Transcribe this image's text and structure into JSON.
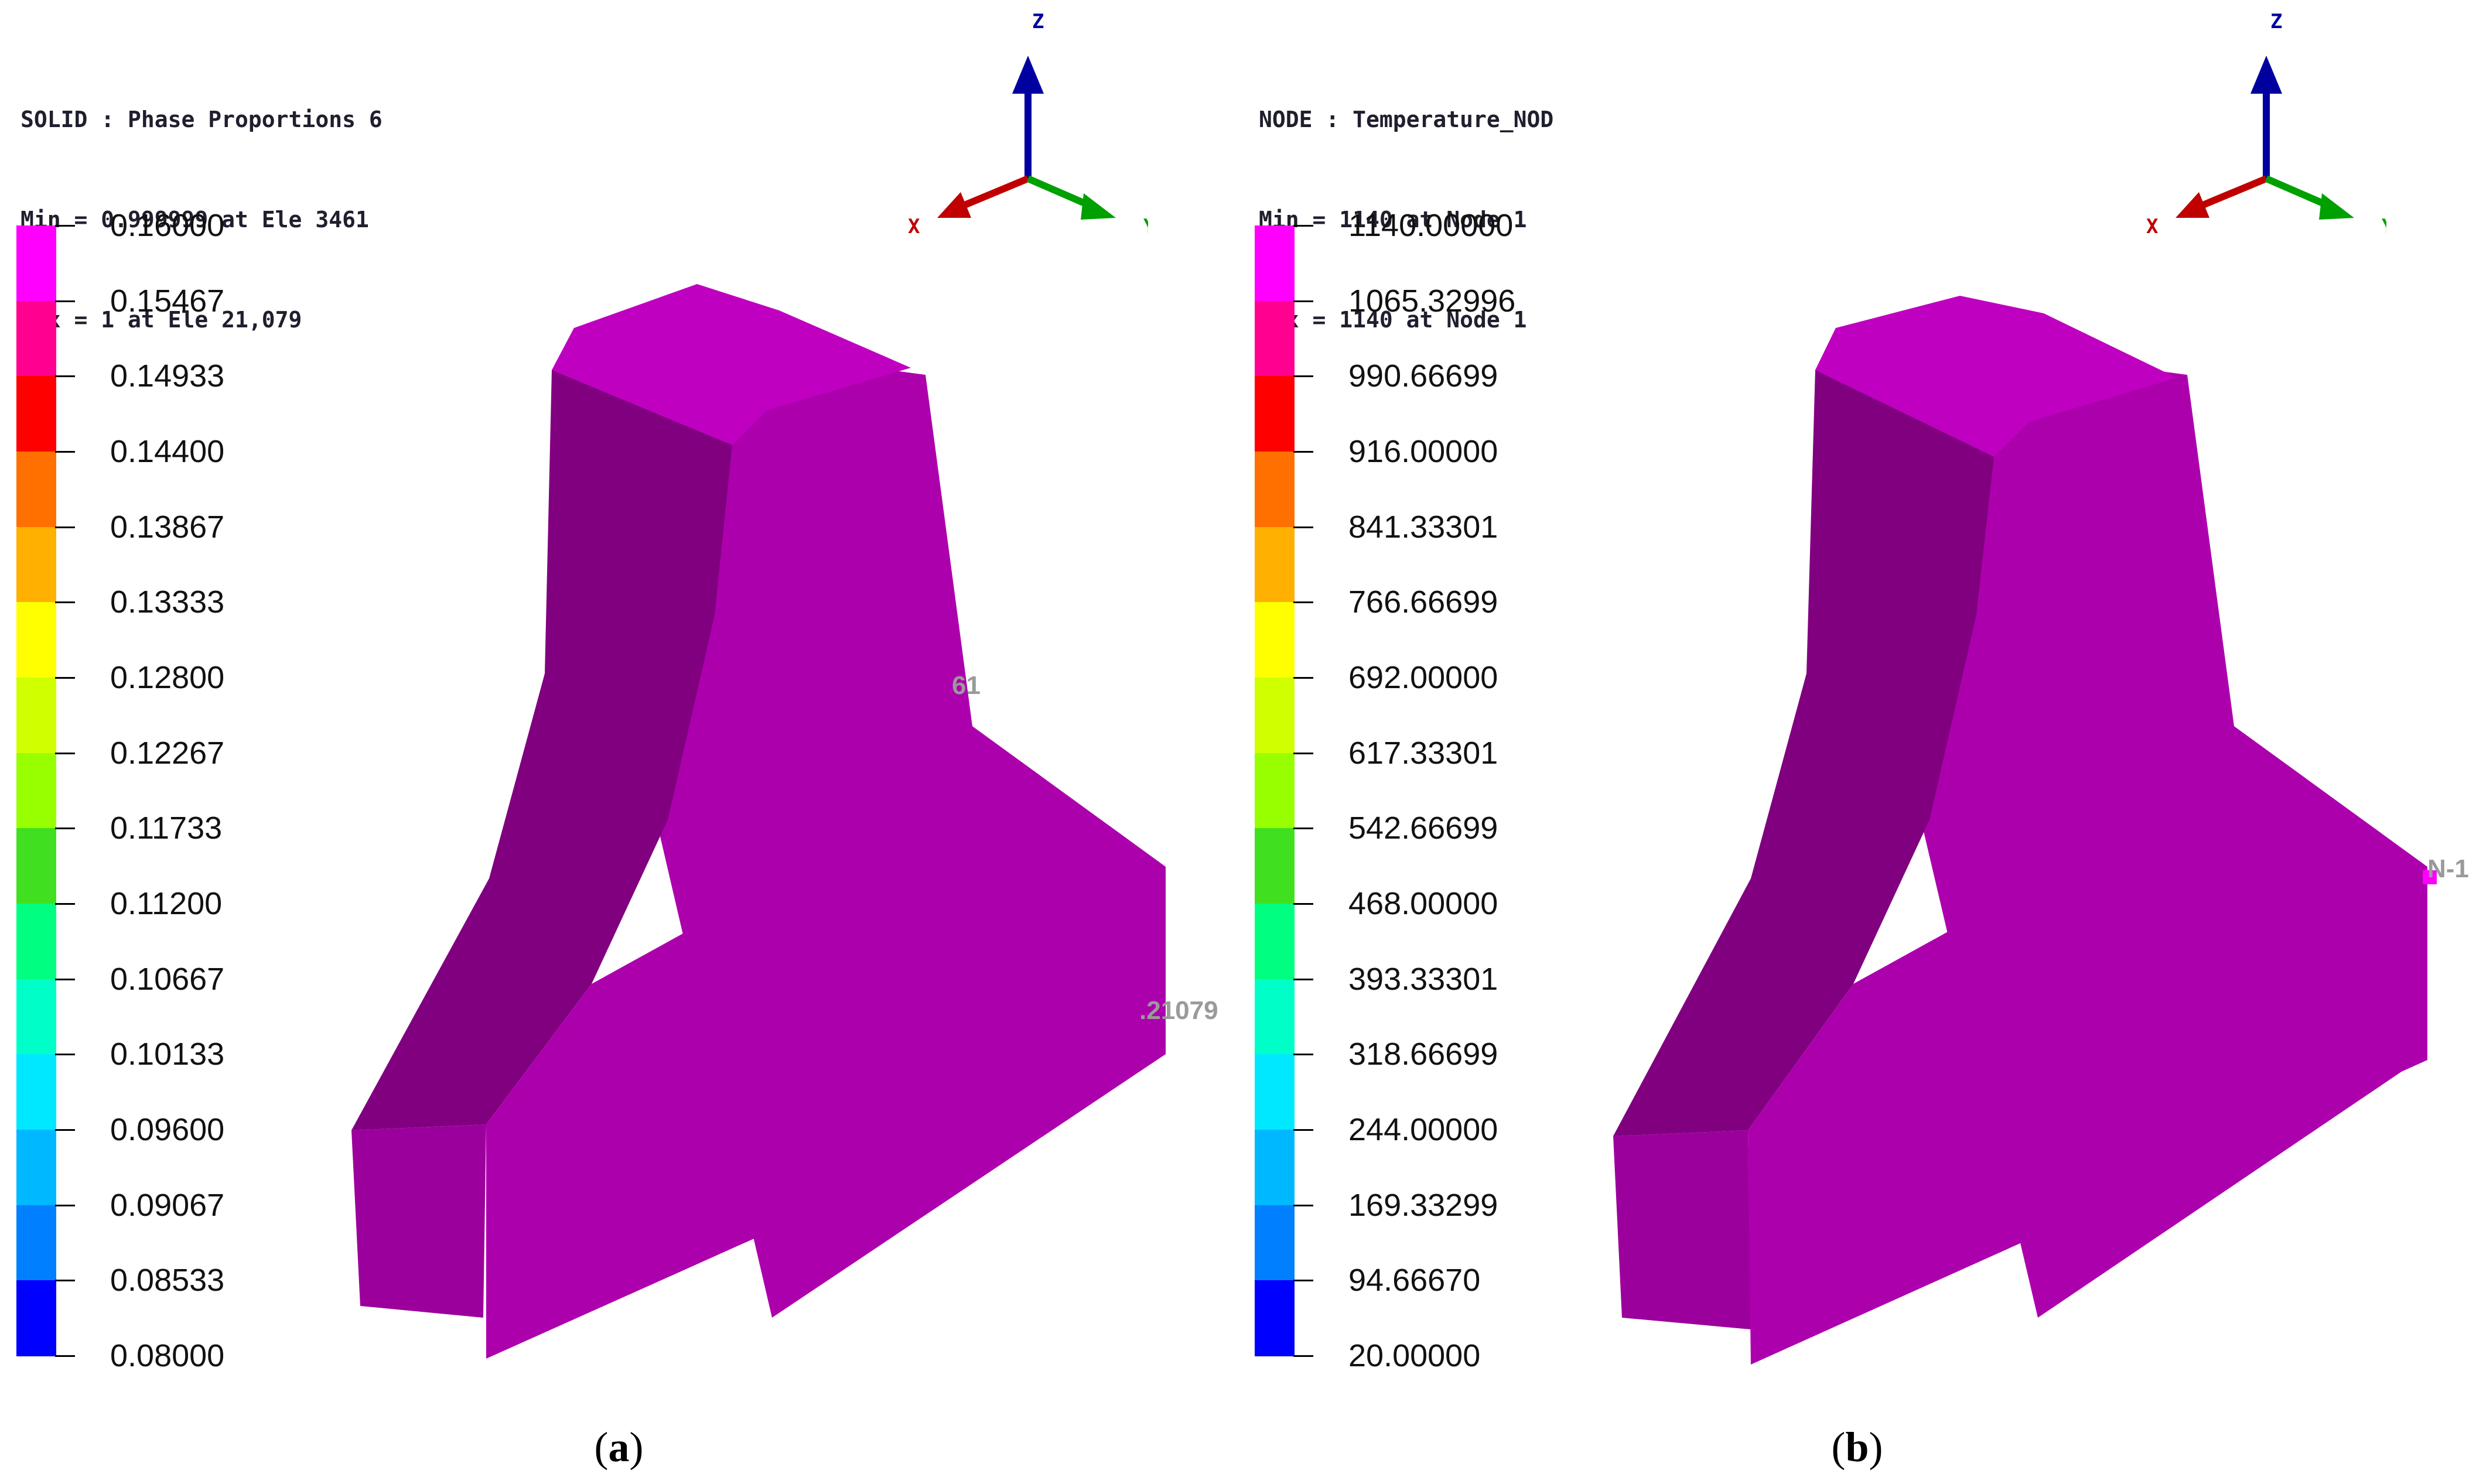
{
  "panels": [
    {
      "header": {
        "line1": "SOLID : Phase Proportions 6",
        "line2": "Min = 0.999999 at Ele 3461",
        "line3": "Max = 1 at Ele 21,079"
      },
      "legend": [
        "0.16000",
        "0.15467",
        "0.14933",
        "0.14400",
        "0.13867",
        "0.13333",
        "0.12800",
        "0.12267",
        "0.11733",
        "0.11200",
        "0.10667",
        "0.10133",
        "0.09600",
        "0.09067",
        "0.08533",
        "0.08000"
      ],
      "axes": {
        "z": "Z",
        "x": "X",
        "y": "Y"
      },
      "annotations": {
        "ann1": "61",
        "ann2": ".21079"
      },
      "caption": {
        "open": "(",
        "letter": "a",
        "close": ")"
      }
    },
    {
      "header": {
        "line1": "NODE : Temperature_NOD",
        "line2": "Min = 1140 at Node 1",
        "line3": "Max = 1140 at Node 1"
      },
      "legend": [
        "1140.00000",
        "1065.32996",
        "990.66699",
        "916.00000",
        "841.33301",
        "766.66699",
        "692.00000",
        "617.33301",
        "542.66699",
        "468.00000",
        "393.33301",
        "318.66699",
        "244.00000",
        "169.33299",
        "94.66670",
        "20.00000"
      ],
      "axes": {
        "z": "Z",
        "x": "X",
        "y": "Y"
      },
      "annotations": {
        "ann1": "N-1"
      },
      "caption": {
        "open": "(",
        "letter": "b",
        "close": ")"
      }
    }
  ],
  "colors": {
    "scale": [
      "#ff00ff",
      "#ff0090",
      "#ff0000",
      "#ff7000",
      "#ffb000",
      "#ffff00",
      "#d0ff00",
      "#98ff00",
      "#40e020",
      "#00ff80",
      "#00ffc8",
      "#00e8ff",
      "#00b8ff",
      "#0080ff",
      "#0000ff"
    ],
    "solid_front": "#ad00ad",
    "solid_top": "#c000c0",
    "solid_dark": "#800080",
    "solid_side": "#9c009c",
    "axis_z": "#0000a0",
    "axis_x": "#c00000",
    "axis_y": "#00a000",
    "node_marker": "#ff00ff"
  }
}
